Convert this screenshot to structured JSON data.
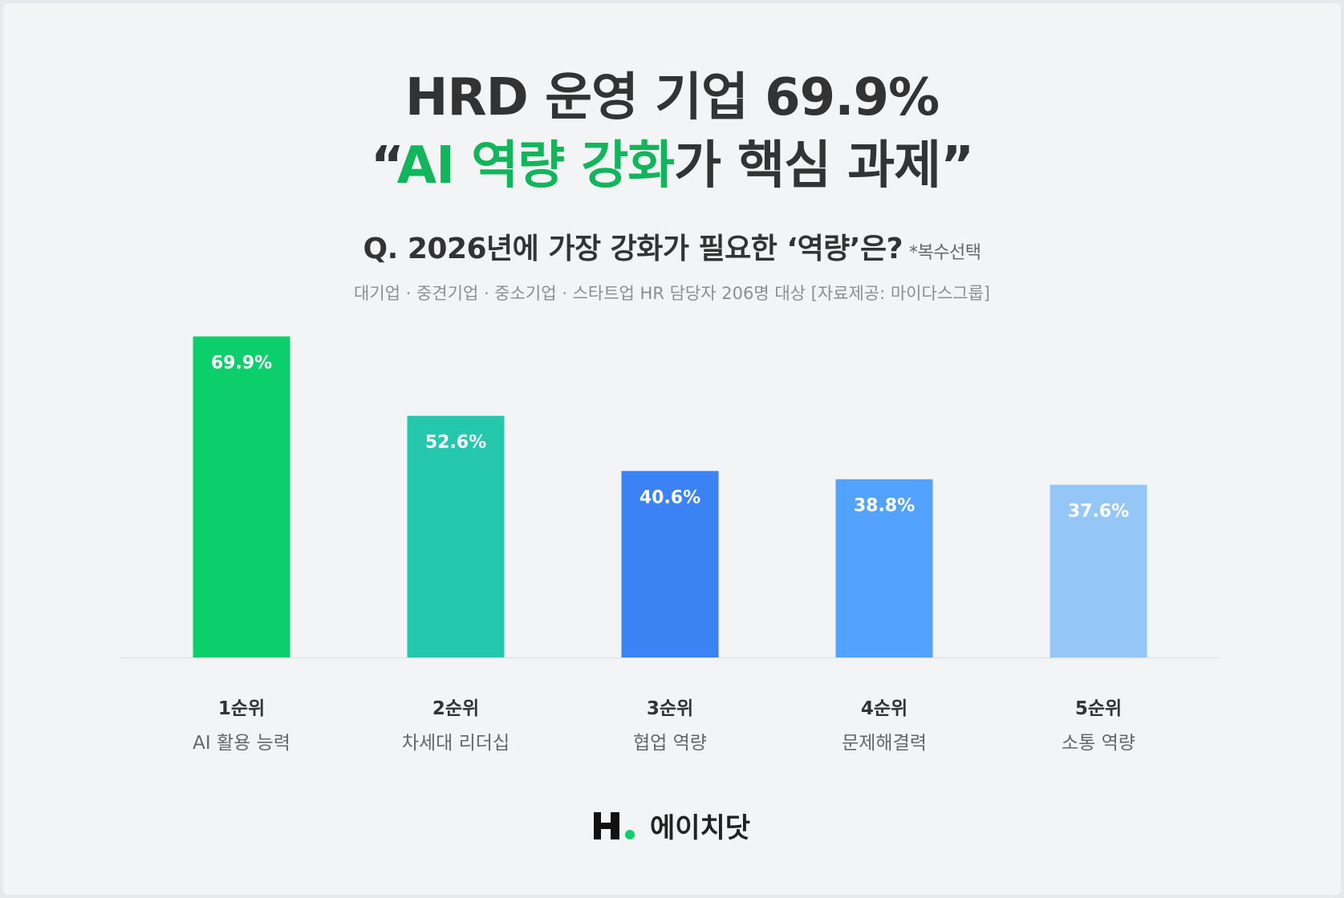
{
  "header": {
    "title_line1": "HRD 운영 기업 69.9%",
    "title_line2_open": "“",
    "title_line2_accent": "AI 역량 강화",
    "title_line2_rest": "가 핵심 과제”",
    "question": "Q. 2026년에 가장 강화가 필요한 ‘역량’은?",
    "question_note": "*복수선택",
    "source": "대기업 · 중견기업 · 중소기업 · 스타트업 HR 담당자 206명 대상 [자료제공: 마이다스그룹]"
  },
  "chart_data": {
    "type": "bar",
    "categories": [
      "1순위",
      "2순위",
      "3순위",
      "4순위",
      "5순위"
    ],
    "sublabels": [
      "AI 활용 능력",
      "차세대 리더십",
      "협업 역량",
      "문제해결력",
      "소통 역량"
    ],
    "values": [
      69.9,
      52.6,
      40.6,
      38.8,
      37.6
    ],
    "data_labels": [
      "69.9%",
      "52.6%",
      "40.6%",
      "38.8%",
      "37.6%"
    ],
    "colors": [
      "#0ccf6b",
      "#25c8ad",
      "#3b82f4",
      "#53a2fd",
      "#94c6f7"
    ],
    "title": "",
    "xlabel": "",
    "ylabel": "",
    "ylim": [
      0,
      70
    ],
    "grid": false
  },
  "brand": {
    "name": "에이치닷",
    "logo_colors": {
      "mark": "#111111",
      "dot": "#0ccf6b"
    }
  }
}
